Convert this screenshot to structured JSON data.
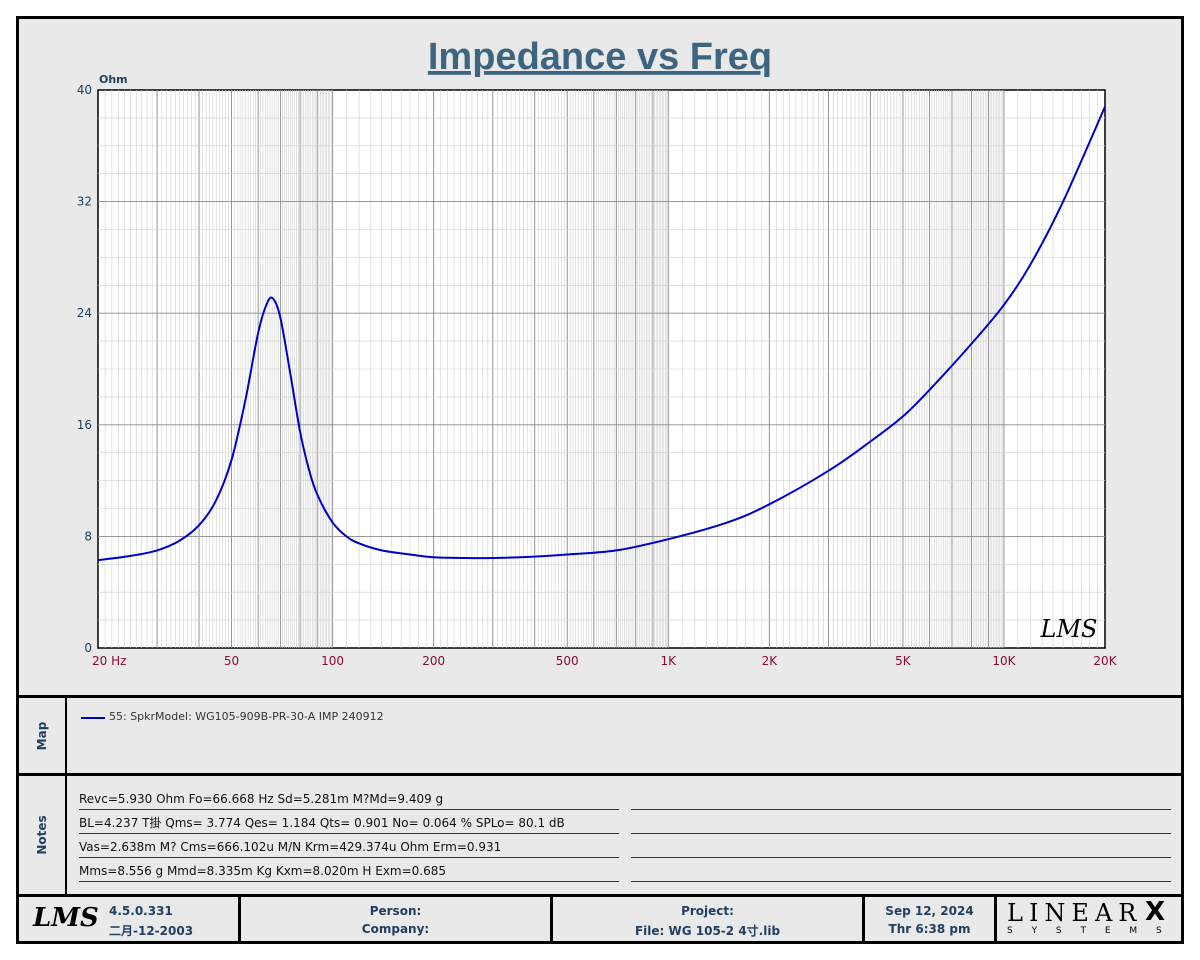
{
  "chart_data": {
    "type": "line",
    "title": "Impedance vs Freq",
    "ylabel": "Ohm",
    "x_scale": "log",
    "xlim": [
      20,
      20000
    ],
    "ylim": [
      0,
      40
    ],
    "grid": true,
    "x_tick_labels": [
      {
        "value": 20,
        "label": "20  Hz"
      },
      {
        "value": 50,
        "label": "50"
      },
      {
        "value": 100,
        "label": "100"
      },
      {
        "value": 200,
        "label": "200"
      },
      {
        "value": 500,
        "label": "500"
      },
      {
        "value": 1000,
        "label": "1K"
      },
      {
        "value": 2000,
        "label": "2K"
      },
      {
        "value": 5000,
        "label": "5K"
      },
      {
        "value": 10000,
        "label": "10K"
      },
      {
        "value": 20000,
        "label": "20K"
      }
    ],
    "y_tick_labels": [
      {
        "value": 40,
        "label": "40"
      },
      {
        "value": 32,
        "label": "32"
      },
      {
        "value": 24,
        "label": "24"
      },
      {
        "value": 16,
        "label": "16"
      },
      {
        "value": 8,
        "label": "8"
      },
      {
        "value": 0,
        "label": "0"
      }
    ],
    "series": [
      {
        "name": "55: SpkrModel: WG105-909B-PR-30-A IMP 240912",
        "color": "#0000cc",
        "points": [
          [
            20,
            6.3
          ],
          [
            25,
            6.6
          ],
          [
            30,
            7.0
          ],
          [
            35,
            7.7
          ],
          [
            40,
            8.8
          ],
          [
            45,
            10.6
          ],
          [
            50,
            13.5
          ],
          [
            55,
            17.8
          ],
          [
            60,
            22.6
          ],
          [
            64,
            24.8
          ],
          [
            66.7,
            25.0
          ],
          [
            70,
            23.6
          ],
          [
            75,
            19.5
          ],
          [
            80,
            15.5
          ],
          [
            85,
            12.8
          ],
          [
            90,
            11.0
          ],
          [
            100,
            9.0
          ],
          [
            110,
            8.0
          ],
          [
            120,
            7.5
          ],
          [
            140,
            7.0
          ],
          [
            170,
            6.7
          ],
          [
            200,
            6.5
          ],
          [
            250,
            6.45
          ],
          [
            300,
            6.45
          ],
          [
            400,
            6.55
          ],
          [
            500,
            6.7
          ],
          [
            700,
            7.0
          ],
          [
            1000,
            7.8
          ],
          [
            1500,
            9.0
          ],
          [
            2000,
            10.3
          ],
          [
            3000,
            12.7
          ],
          [
            4000,
            14.8
          ],
          [
            5000,
            16.6
          ],
          [
            6000,
            18.5
          ],
          [
            8000,
            21.8
          ],
          [
            10000,
            24.6
          ],
          [
            12000,
            27.5
          ],
          [
            15000,
            32.0
          ],
          [
            20000,
            38.8
          ]
        ]
      }
    ]
  },
  "watermark": "LMS",
  "map": {
    "label": "Map",
    "legend_entry": "55: SpkrModel: WG105-909B-PR-30-A IMP 240912"
  },
  "notes": {
    "label": "Notes",
    "lines": [
      "Revc=5.930 Ohm  Fo=66.668 Hz  Sd=5.281m M?Md=9.409 g",
      "BL=4.237 T掛  Qms= 3.774  Qes= 1.184  Qts= 0.901  No= 0.064 %  SPLo= 80.1 dB",
      "Vas=2.638m M? Cms=666.102u M/N  Krm=429.374u Ohm  Erm=0.931",
      "Mms=8.556 g  Mmd=8.335m Kg  Kxm=8.020m H  Exm=0.685"
    ]
  },
  "footer": {
    "logo": "LMS",
    "version": "4.5.0.331",
    "version_date": "二月-12-2003",
    "person": "Person:",
    "company": "Company:",
    "project": "Project:",
    "file": "File: WG 105-2 4寸.lib",
    "date": "Sep 12, 2024",
    "time": "Thr  6:38 pm",
    "brand_top": "LINEAR",
    "brand_x": "X",
    "brand_bottom": "S Y S T E M S"
  }
}
